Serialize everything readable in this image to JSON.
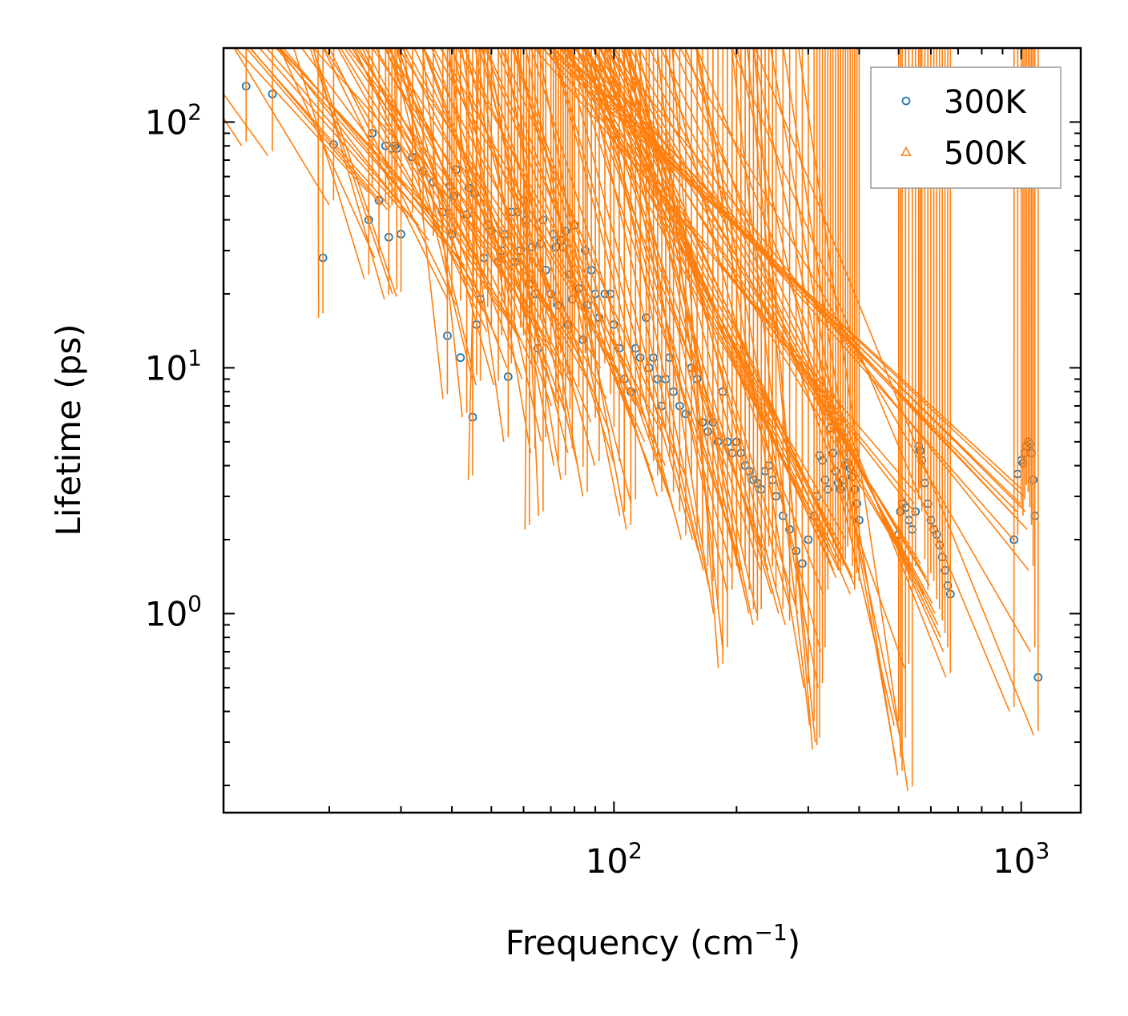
{
  "chart_data": {
    "type": "scatter",
    "title": "",
    "xlabel": {
      "text": "Frequency (cm",
      "sup": "−1",
      "suffix": ")"
    },
    "ylabel": "Lifetime (ps)",
    "xscale": "log",
    "yscale": "log",
    "xlim": [
      11.0,
      1400.0
    ],
    "ylim": [
      0.155,
      200.0
    ],
    "x_ticks": [
      {
        "value": 100,
        "base": "10",
        "exp": "2"
      },
      {
        "value": 1000,
        "base": "10",
        "exp": "3"
      }
    ],
    "y_ticks": [
      {
        "value": 1,
        "base": "10",
        "exp": "0"
      },
      {
        "value": 10,
        "base": "10",
        "exp": "1"
      },
      {
        "value": 100,
        "base": "10",
        "exp": "2"
      }
    ],
    "legend_position": "top-right",
    "grid": false,
    "series": [
      {
        "name": "300K",
        "marker": "circle",
        "color": "#1f77b4",
        "points": [
          [
            12.5,
            140
          ],
          [
            14.5,
            130
          ],
          [
            19.3,
            28
          ],
          [
            20.5,
            81
          ],
          [
            25,
            40
          ],
          [
            25.5,
            90
          ],
          [
            26.5,
            48
          ],
          [
            27.5,
            80
          ],
          [
            28,
            34
          ],
          [
            28.5,
            78
          ],
          [
            29,
            80
          ],
          [
            29.3,
            78
          ],
          [
            30,
            35
          ],
          [
            32,
            72
          ],
          [
            34,
            63
          ],
          [
            36,
            57
          ],
          [
            38,
            43
          ],
          [
            39,
            13.5
          ],
          [
            39.5,
            55
          ],
          [
            40,
            35
          ],
          [
            40.5,
            50
          ],
          [
            41,
            64
          ],
          [
            42,
            11
          ],
          [
            43.5,
            42
          ],
          [
            44,
            54
          ],
          [
            45,
            6.3
          ],
          [
            45.5,
            51
          ],
          [
            46,
            15
          ],
          [
            47,
            19
          ],
          [
            48,
            28
          ],
          [
            49,
            38
          ],
          [
            50,
            36
          ],
          [
            52,
            27
          ],
          [
            53,
            30
          ],
          [
            54,
            35
          ],
          [
            55,
            9.2
          ],
          [
            56,
            43
          ],
          [
            57,
            27
          ],
          [
            58,
            43
          ],
          [
            59,
            30
          ],
          [
            60,
            48
          ],
          [
            61,
            40
          ],
          [
            62,
            22
          ],
          [
            63,
            31
          ],
          [
            64,
            20
          ],
          [
            65,
            12
          ],
          [
            66,
            32
          ],
          [
            67,
            40
          ],
          [
            68,
            25
          ],
          [
            70,
            20
          ],
          [
            71,
            35
          ],
          [
            72,
            31
          ],
          [
            73,
            18
          ],
          [
            74,
            33
          ],
          [
            75,
            31
          ],
          [
            76,
            36
          ],
          [
            77,
            15
          ],
          [
            78,
            24
          ],
          [
            79,
            19
          ],
          [
            80,
            38
          ],
          [
            82,
            21
          ],
          [
            84,
            13
          ],
          [
            85,
            30
          ],
          [
            86,
            18
          ],
          [
            88,
            25
          ],
          [
            90,
            20
          ],
          [
            92,
            16
          ],
          [
            95,
            20
          ],
          [
            98,
            20
          ],
          [
            100,
            15
          ],
          [
            103,
            12
          ],
          [
            106,
            9
          ],
          [
            110,
            8
          ],
          [
            113,
            12
          ],
          [
            116,
            11
          ],
          [
            120,
            16
          ],
          [
            122,
            10
          ],
          [
            125,
            11
          ],
          [
            128,
            9
          ],
          [
            131,
            7
          ],
          [
            134,
            9
          ],
          [
            137,
            11
          ],
          [
            140,
            8
          ],
          [
            145,
            7
          ],
          [
            150,
            6.5
          ],
          [
            155,
            10
          ],
          [
            160,
            9
          ],
          [
            165,
            6
          ],
          [
            170,
            5.5
          ],
          [
            175,
            6
          ],
          [
            180,
            5
          ],
          [
            185,
            8
          ],
          [
            190,
            5
          ],
          [
            195,
            4.5
          ],
          [
            200,
            5
          ],
          [
            205,
            4.5
          ],
          [
            210,
            4
          ],
          [
            215,
            3.8
          ],
          [
            220,
            3.5
          ],
          [
            225,
            3.4
          ],
          [
            230,
            3.2
          ],
          [
            235,
            3.8
          ],
          [
            240,
            4
          ],
          [
            245,
            3.5
          ],
          [
            250,
            3
          ],
          [
            260,
            2.5
          ],
          [
            270,
            2.2
          ],
          [
            280,
            1.8
          ],
          [
            290,
            1.6
          ],
          [
            300,
            2
          ],
          [
            310,
            2.5
          ],
          [
            315,
            3
          ],
          [
            320,
            4.4
          ],
          [
            325,
            4.2
          ],
          [
            330,
            3.5
          ],
          [
            335,
            3.2
          ],
          [
            340,
            5.7
          ],
          [
            345,
            4.5
          ],
          [
            350,
            3.8
          ],
          [
            355,
            3.4
          ],
          [
            360,
            3.2
          ],
          [
            365,
            3.5
          ],
          [
            370,
            4
          ],
          [
            375,
            4.1
          ],
          [
            380,
            3.9
          ],
          [
            385,
            3.6
          ],
          [
            390,
            3.2
          ],
          [
            395,
            2.8
          ],
          [
            400,
            2.4
          ],
          [
            500,
            2.1
          ],
          [
            505,
            2.6
          ],
          [
            510,
            2.8
          ],
          [
            520,
            2.7
          ],
          [
            530,
            2.4
          ],
          [
            540,
            2.2
          ],
          [
            550,
            2.6
          ],
          [
            560,
            4.8
          ],
          [
            565,
            4.6
          ],
          [
            570,
            4.2
          ],
          [
            580,
            3.4
          ],
          [
            590,
            2.8
          ],
          [
            600,
            2.4
          ],
          [
            610,
            2.2
          ],
          [
            620,
            2.1
          ],
          [
            630,
            1.9
          ],
          [
            640,
            1.7
          ],
          [
            650,
            1.5
          ],
          [
            660,
            1.3
          ],
          [
            670,
            1.2
          ],
          [
            960,
            2
          ],
          [
            980,
            3.7
          ],
          [
            1000,
            4.2
          ],
          [
            1010,
            4.1
          ],
          [
            1020,
            4.5
          ],
          [
            1030,
            4.8
          ],
          [
            1040,
            5
          ],
          [
            1050,
            4.9
          ],
          [
            1060,
            4.5
          ],
          [
            1070,
            3.5
          ],
          [
            1080,
            2.5
          ],
          [
            1100,
            0.55
          ]
        ]
      },
      {
        "name": "500K",
        "marker": "triangle",
        "color": "#ff7f0e",
        "points": [
          [
            12.5,
            80
          ],
          [
            14.5,
            73
          ],
          [
            19.3,
            16
          ],
          [
            20.5,
            46
          ],
          [
            25,
            23
          ],
          [
            25.5,
            52
          ],
          [
            26.5,
            28
          ],
          [
            27.5,
            46
          ],
          [
            28,
            19
          ],
          [
            28.5,
            44
          ],
          [
            29,
            45
          ],
          [
            29.3,
            20
          ],
          [
            30,
            19.5
          ],
          [
            32,
            41
          ],
          [
            34,
            38
          ],
          [
            36,
            33
          ],
          [
            38,
            35
          ],
          [
            39,
            7.5
          ],
          [
            39.5,
            32
          ],
          [
            40,
            19
          ],
          [
            40.5,
            34
          ],
          [
            41,
            35
          ],
          [
            42,
            18
          ],
          [
            43.5,
            6.3
          ],
          [
            44,
            26
          ],
          [
            45,
            3.5
          ],
          [
            46,
            9
          ],
          [
            47,
            8.5
          ],
          [
            48,
            20
          ],
          [
            49,
            17
          ],
          [
            50,
            14
          ],
          [
            52,
            8.5
          ],
          [
            53,
            13
          ],
          [
            54,
            17
          ],
          [
            55,
            5
          ],
          [
            56,
            10
          ],
          [
            57,
            15
          ],
          [
            58,
            25
          ],
          [
            59,
            14
          ],
          [
            60,
            13
          ],
          [
            61,
            9
          ],
          [
            62,
            2.2
          ],
          [
            63,
            17
          ],
          [
            64,
            4.5
          ],
          [
            65,
            10
          ],
          [
            66,
            15
          ],
          [
            67,
            2.5
          ],
          [
            68,
            5
          ],
          [
            70,
            12
          ],
          [
            71,
            17
          ],
          [
            72,
            7
          ],
          [
            73,
            4
          ],
          [
            74,
            11
          ],
          [
            75,
            7
          ],
          [
            76,
            3.5
          ],
          [
            77,
            9
          ],
          [
            78,
            6.5
          ],
          [
            79,
            4.5
          ],
          [
            80,
            13
          ],
          [
            82,
            8
          ],
          [
            84,
            3.8
          ],
          [
            85,
            11
          ],
          [
            86,
            3
          ],
          [
            88,
            9
          ],
          [
            90,
            6
          ],
          [
            92,
            4
          ],
          [
            95,
            10
          ],
          [
            98,
            7.5
          ],
          [
            100,
            5.5
          ],
          [
            103,
            4
          ],
          [
            106,
            2.5
          ],
          [
            110,
            2.2
          ],
          [
            113,
            2.8
          ],
          [
            116,
            7
          ],
          [
            120,
            6.5
          ],
          [
            122,
            5
          ],
          [
            125,
            4
          ],
          [
            128,
            3.5
          ],
          [
            131,
            3
          ],
          [
            134,
            5.5
          ],
          [
            137,
            4
          ],
          [
            140,
            3
          ],
          [
            145,
            2.5
          ],
          [
            150,
            2
          ],
          [
            155,
            3.5
          ],
          [
            160,
            2
          ],
          [
            165,
            1.8
          ],
          [
            170,
            1.5
          ],
          [
            175,
            1.3
          ],
          [
            180,
            1
          ],
          [
            185,
            0.6
          ],
          [
            190,
            0.7
          ],
          [
            195,
            1.2
          ],
          [
            200,
            1.5
          ],
          [
            205,
            1.8
          ],
          [
            210,
            1.5
          ],
          [
            215,
            1.2
          ],
          [
            220,
            1
          ],
          [
            225,
            0.9
          ],
          [
            230,
            1
          ],
          [
            235,
            1.5
          ],
          [
            240,
            1.8
          ],
          [
            245,
            1.5
          ],
          [
            250,
            1.2
          ],
          [
            260,
            1
          ],
          [
            270,
            0.9
          ],
          [
            280,
            1
          ],
          [
            290,
            1
          ],
          [
            300,
            0.5
          ],
          [
            310,
            0.35
          ],
          [
            315,
            0.28
          ],
          [
            320,
            0.3
          ],
          [
            325,
            0.5
          ],
          [
            330,
            0.7
          ],
          [
            335,
            1.2
          ],
          [
            340,
            2
          ],
          [
            345,
            1.8
          ],
          [
            350,
            1.6
          ],
          [
            355,
            1.5
          ],
          [
            360,
            1.4
          ],
          [
            365,
            1.5
          ],
          [
            370,
            1.6
          ],
          [
            375,
            1.8
          ],
          [
            380,
            2
          ],
          [
            385,
            1.5
          ],
          [
            390,
            1.2
          ],
          [
            395,
            1.4
          ],
          [
            400,
            1.3
          ],
          [
            500,
            0.35
          ],
          [
            505,
            0.25
          ],
          [
            510,
            0.22
          ],
          [
            520,
            0.3
          ],
          [
            530,
            0.6
          ],
          [
            540,
            0.19
          ],
          [
            550,
            1.5
          ],
          [
            560,
            2.8
          ],
          [
            565,
            3.1
          ],
          [
            570,
            2.5
          ],
          [
            580,
            1.6
          ],
          [
            590,
            1.2
          ],
          [
            600,
            1.4
          ],
          [
            610,
            1.3
          ],
          [
            620,
            1.1
          ],
          [
            630,
            1
          ],
          [
            640,
            0.9
          ],
          [
            650,
            0.8
          ],
          [
            660,
            0.7
          ],
          [
            670,
            0.55
          ],
          [
            960,
            0.4
          ],
          [
            980,
            2
          ],
          [
            1000,
            2.6
          ],
          [
            1010,
            2.4
          ],
          [
            1020,
            2.8
          ],
          [
            1030,
            3.2
          ],
          [
            1040,
            3
          ],
          [
            1050,
            2.6
          ],
          [
            1060,
            2.2
          ],
          [
            1070,
            1.5
          ],
          [
            1080,
            0.7
          ],
          [
            1100,
            0.32
          ]
        ]
      }
    ]
  }
}
